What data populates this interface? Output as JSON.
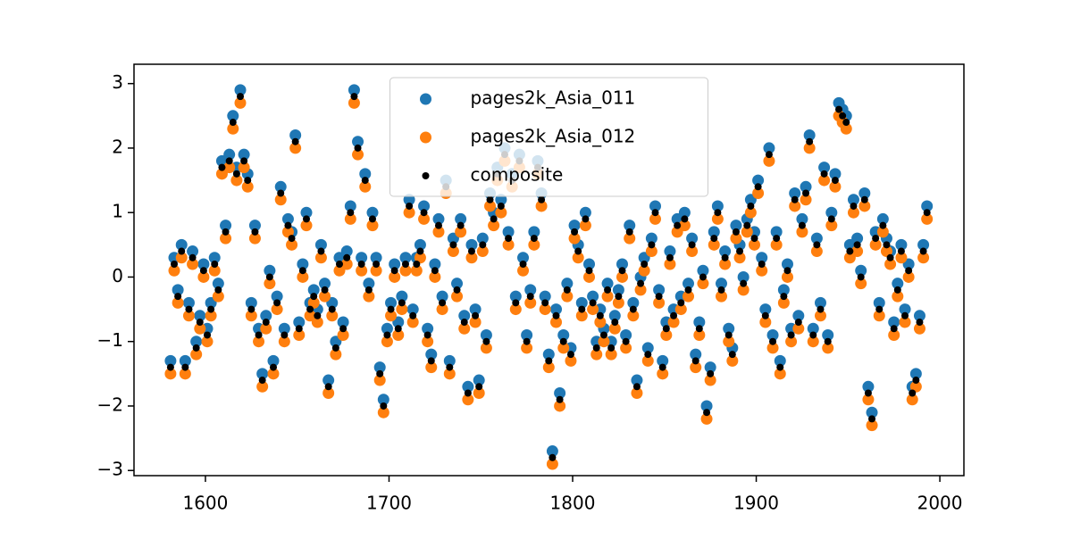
{
  "chart_data": {
    "type": "scatter",
    "x": [
      1581,
      1583,
      1585,
      1587,
      1589,
      1591,
      1593,
      1595,
      1597,
      1599,
      1601,
      1603,
      1605,
      1607,
      1609,
      1611,
      1613,
      1615,
      1617,
      1619,
      1621,
      1623,
      1625,
      1627,
      1629,
      1631,
      1633,
      1635,
      1637,
      1639,
      1641,
      1643,
      1645,
      1647,
      1649,
      1651,
      1653,
      1655,
      1657,
      1659,
      1661,
      1663,
      1665,
      1667,
      1669,
      1671,
      1673,
      1675,
      1677,
      1679,
      1681,
      1683,
      1685,
      1687,
      1689,
      1691,
      1693,
      1695,
      1697,
      1699,
      1701,
      1703,
      1705,
      1707,
      1709,
      1711,
      1713,
      1715,
      1717,
      1719,
      1721,
      1723,
      1725,
      1727,
      1729,
      1731,
      1733,
      1735,
      1737,
      1739,
      1741,
      1743,
      1745,
      1747,
      1749,
      1751,
      1753,
      1755,
      1757,
      1759,
      1761,
      1763,
      1765,
      1767,
      1769,
      1771,
      1773,
      1775,
      1777,
      1779,
      1781,
      1783,
      1785,
      1787,
      1789,
      1791,
      1793,
      1795,
      1797,
      1799,
      1801,
      1803,
      1805,
      1807,
      1809,
      1811,
      1813,
      1815,
      1817,
      1819,
      1821,
      1823,
      1825,
      1827,
      1829,
      1831,
      1833,
      1835,
      1837,
      1839,
      1841,
      1843,
      1845,
      1847,
      1849,
      1851,
      1853,
      1855,
      1857,
      1859,
      1861,
      1863,
      1865,
      1867,
      1869,
      1871,
      1873,
      1875,
      1877,
      1879,
      1881,
      1883,
      1885,
      1887,
      1889,
      1891,
      1893,
      1895,
      1897,
      1899,
      1901,
      1903,
      1905,
      1907,
      1909,
      1911,
      1913,
      1915,
      1917,
      1919,
      1921,
      1923,
      1925,
      1927,
      1929,
      1931,
      1933,
      1935,
      1937,
      1939,
      1941,
      1943,
      1945,
      1947,
      1949,
      1951,
      1953,
      1955,
      1957,
      1959,
      1961,
      1963,
      1965,
      1967,
      1969,
      1971,
      1973,
      1975,
      1977,
      1979,
      1981,
      1983,
      1985,
      1987,
      1989,
      1991,
      1993
    ],
    "series": [
      {
        "name": "pages2k_Asia_011",
        "color": "#1f77b4",
        "values": [
          -1.3,
          0.3,
          -0.2,
          0.5,
          -1.3,
          -0.4,
          0.4,
          -1,
          -0.6,
          0.2,
          -0.8,
          -0.4,
          0.3,
          -0.1,
          1.8,
          0.8,
          1.9,
          2.5,
          1.7,
          2.9,
          1.9,
          1.6,
          -0.4,
          0.8,
          -0.8,
          -1.5,
          -0.6,
          0.1,
          -1.3,
          -0.3,
          1.4,
          -0.8,
          0.9,
          0.7,
          2.2,
          -0.7,
          0.2,
          1,
          -0.4,
          -0.2,
          -0.5,
          0.5,
          -0.1,
          -1.6,
          -0.4,
          -1,
          0.3,
          -0.7,
          0.4,
          1.1,
          2.9,
          2.1,
          0.3,
          1.6,
          -0.1,
          1,
          0.3,
          -1.4,
          -1.9,
          -0.8,
          -0.4,
          0.2,
          -0.7,
          -0.3,
          0.3,
          1.2,
          -0.5,
          0.3,
          0.5,
          1.1,
          -0.8,
          -1.2,
          0.2,
          0.9,
          -0.3,
          1.5,
          -1.3,
          0.6,
          -0.1,
          0.9,
          -0.6,
          -1.7,
          0.5,
          -0.5,
          -1.6,
          0.6,
          -0.9,
          1.3,
          1,
          1.7,
          1.2,
          2,
          0.7,
          1.6,
          -0.3,
          1.9,
          0.3,
          -0.9,
          -0.2,
          0.7,
          1.8,
          1.3,
          -0.3,
          -1.2,
          -2.7,
          -0.5,
          -1.8,
          -0.9,
          -0.1,
          -1.1,
          0.8,
          0.5,
          -0.4,
          1,
          0.2,
          -0.3,
          -1,
          -0.5,
          -0.8,
          -0.1,
          -1,
          -0.6,
          -0.2,
          0.2,
          -0.9,
          0.8,
          -0.4,
          -1.6,
          0,
          0.3,
          -1.1,
          0.6,
          1.1,
          -0.2,
          -1.3,
          -0.7,
          0.4,
          -0.5,
          0.9,
          -0.3,
          1,
          -0.1,
          0.6,
          -1.2,
          -0.7,
          0.1,
          -2,
          -1.4,
          0.7,
          1.1,
          -0.1,
          0.4,
          -0.8,
          -1.1,
          0.8,
          0.5,
          0,
          0.9,
          1.2,
          0.7,
          1.5,
          0.3,
          -0.5,
          2,
          -0.9,
          0.7,
          -1.3,
          -0.2,
          0.2,
          -0.8,
          1.3,
          -0.6,
          0.9,
          1.4,
          2.2,
          -0.8,
          0.6,
          -0.4,
          1.7,
          -0.9,
          1,
          1.6,
          2.7,
          2.6,
          2.5,
          0.5,
          1.2,
          0.6,
          0.1,
          1.3,
          -1.7,
          -2.1,
          0.7,
          -0.4,
          0.9,
          0.6,
          0.4,
          -0.7,
          -0.1,
          0.5,
          -0.5,
          0.2,
          -1.7,
          -1.5,
          -0.6,
          0.5,
          1.1
        ]
      },
      {
        "name": "pages2k_Asia_012",
        "color": "#ff7f0e",
        "values": [
          -1.5,
          0.1,
          -0.4,
          0.3,
          -1.5,
          -0.6,
          0.2,
          -1.2,
          -0.8,
          0,
          -1,
          -0.6,
          0.1,
          -0.3,
          1.6,
          0.6,
          1.7,
          2.3,
          1.5,
          2.7,
          1.7,
          1.4,
          -0.6,
          0.6,
          -1,
          -1.7,
          -0.8,
          -0.1,
          -1.5,
          -0.5,
          1.2,
          -1,
          0.7,
          0.5,
          2,
          -0.9,
          0,
          0.8,
          -0.6,
          -0.4,
          -0.7,
          0.3,
          -0.3,
          -1.8,
          -0.6,
          -1.2,
          0.1,
          -0.9,
          0.2,
          0.9,
          2.7,
          1.9,
          0.1,
          1.4,
          -0.3,
          0.8,
          0.1,
          -1.6,
          -2.1,
          -1,
          -0.6,
          0,
          -0.9,
          -0.5,
          0.1,
          1,
          -0.7,
          0.1,
          0.3,
          0.9,
          -1,
          -1.4,
          0,
          0.7,
          -0.5,
          1.3,
          -1.5,
          0.4,
          -0.3,
          0.7,
          -0.8,
          -1.9,
          0.3,
          -0.7,
          -1.8,
          0.4,
          -1.1,
          1.1,
          0.8,
          1.5,
          1,
          1.8,
          0.5,
          1.4,
          -0.5,
          1.7,
          0.1,
          -1.1,
          -0.4,
          0.5,
          1.6,
          1.1,
          -0.5,
          -1.4,
          -2.9,
          -0.7,
          -2,
          -1.1,
          -0.3,
          -1.3,
          0.6,
          0.3,
          -0.6,
          0.8,
          0,
          -0.5,
          -1.2,
          -0.7,
          -1,
          -0.3,
          -1.2,
          -0.8,
          -0.4,
          0,
          -1.1,
          0.6,
          -0.6,
          -1.8,
          -0.2,
          0.1,
          -1.3,
          0.4,
          0.9,
          -0.4,
          -1.5,
          -0.9,
          0.2,
          -0.7,
          0.7,
          -0.5,
          0.8,
          -0.3,
          0.4,
          -1.4,
          -0.9,
          -0.1,
          -2.2,
          -1.6,
          0.5,
          0.9,
          -0.3,
          0.2,
          -1,
          -1.3,
          0.6,
          0.3,
          -0.2,
          0.7,
          1,
          0.5,
          1.3,
          0.1,
          -0.7,
          1.8,
          -1.1,
          0.5,
          -1.5,
          -0.4,
          0,
          -1,
          1.1,
          -0.8,
          0.7,
          1.2,
          2,
          -1,
          0.4,
          -0.6,
          1.5,
          -1.1,
          0.8,
          1.4,
          2.5,
          2.4,
          2.3,
          0.3,
          1,
          0.4,
          -0.1,
          1.1,
          -1.9,
          -2.3,
          0.5,
          -0.6,
          0.7,
          0.4,
          0.2,
          -0.9,
          -0.3,
          0.3,
          -0.7,
          0,
          -1.9,
          -1.7,
          -0.8,
          0.3,
          0.9
        ]
      },
      {
        "name": "composite",
        "color": "#000000",
        "values": [
          -1.4,
          0.2,
          -0.3,
          0.4,
          -1.4,
          -0.5,
          0.3,
          -1.1,
          -0.7,
          0.1,
          -0.9,
          -0.5,
          0.2,
          -0.2,
          1.7,
          0.7,
          1.8,
          2.4,
          1.6,
          2.8,
          1.8,
          1.5,
          -0.5,
          0.7,
          -0.9,
          -1.6,
          -0.7,
          0,
          -1.4,
          -0.4,
          1.3,
          -0.9,
          0.8,
          0.6,
          2.1,
          -0.8,
          0.1,
          0.9,
          -0.5,
          -0.3,
          -0.6,
          0.4,
          -0.2,
          -1.7,
          -0.5,
          -1.1,
          0.2,
          -0.8,
          0.3,
          1,
          2.8,
          2,
          0.2,
          1.5,
          -0.2,
          0.9,
          0.2,
          -1.5,
          -2,
          -0.9,
          -0.5,
          0.1,
          -0.8,
          -0.4,
          0.2,
          1.1,
          -0.6,
          0.2,
          0.4,
          1,
          -0.9,
          -1.3,
          0.1,
          0.8,
          -0.4,
          1.4,
          -1.4,
          0.5,
          -0.2,
          0.8,
          -0.7,
          -1.8,
          0.4,
          -0.6,
          -1.7,
          0.5,
          -1,
          1.2,
          0.9,
          1.6,
          1.1,
          1.9,
          0.6,
          1.5,
          -0.4,
          1.8,
          0.2,
          -1,
          -0.3,
          0.6,
          1.7,
          1.2,
          -0.4,
          -1.3,
          -2.8,
          -0.6,
          -1.9,
          -1,
          -0.2,
          -1.2,
          0.7,
          0.4,
          -0.5,
          0.9,
          0.1,
          -0.4,
          -1.1,
          -0.6,
          -0.9,
          -0.2,
          -1.1,
          -0.7,
          -0.3,
          0.1,
          -1,
          0.7,
          -0.5,
          -1.7,
          -0.1,
          0.2,
          -1.2,
          0.5,
          1,
          -0.3,
          -1.4,
          -0.8,
          0.3,
          -0.6,
          0.8,
          -0.4,
          0.9,
          -0.2,
          0.5,
          -1.3,
          -0.8,
          0,
          -2.1,
          -1.5,
          0.6,
          1,
          -0.2,
          0.3,
          -0.9,
          -1.2,
          0.7,
          0.4,
          -0.1,
          0.8,
          1.1,
          0.6,
          1.4,
          0.2,
          -0.6,
          1.9,
          -1,
          0.6,
          -1.4,
          -0.3,
          0.1,
          -0.9,
          1.2,
          -0.7,
          0.8,
          1.3,
          2.1,
          -0.9,
          0.5,
          -0.5,
          1.6,
          -1,
          0.9,
          1.5,
          2.6,
          2.5,
          2.4,
          0.4,
          1.1,
          0.5,
          0,
          1.2,
          -1.8,
          -2.2,
          0.6,
          -0.5,
          0.8,
          0.5,
          0.3,
          -0.8,
          -0.2,
          0.4,
          -0.6,
          0.1,
          -1.8,
          -1.6,
          -0.7,
          0.4,
          1
        ]
      }
    ],
    "xlim": [
      1561.1,
      2013.1
    ],
    "ylim": [
      -3.08,
      3.3
    ],
    "xticks": [
      1600,
      1700,
      1800,
      1900,
      2000
    ],
    "yticks": [
      {
        "value": -3,
        "label": "−3"
      },
      {
        "value": -2,
        "label": "−2"
      },
      {
        "value": -1,
        "label": "−1"
      },
      0,
      1,
      2,
      3
    ],
    "legend": "upper center"
  }
}
